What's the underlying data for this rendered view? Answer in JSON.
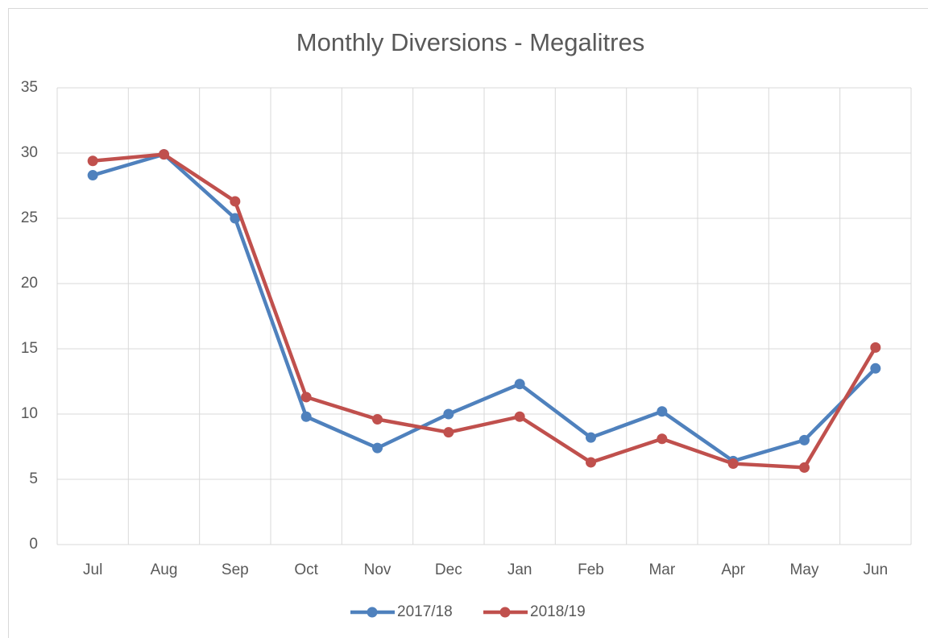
{
  "chart_data": {
    "type": "line",
    "title": "Monthly Diversions - Megalitres",
    "categories": [
      "Jul",
      "Aug",
      "Sep",
      "Oct",
      "Nov",
      "Dec",
      "Jan",
      "Feb",
      "Mar",
      "Apr",
      "May",
      "Jun"
    ],
    "series": [
      {
        "name": "2017/18",
        "color": "#4f81bd",
        "values": [
          28.3,
          29.9,
          25.0,
          9.8,
          7.4,
          10.0,
          12.3,
          8.2,
          10.2,
          6.4,
          8.0,
          13.5
        ]
      },
      {
        "name": "2018/19",
        "color": "#c0504d",
        "values": [
          29.4,
          29.9,
          26.3,
          11.3,
          9.6,
          8.6,
          9.8,
          6.3,
          8.1,
          6.2,
          5.9,
          15.1
        ]
      }
    ],
    "ylim": [
      0,
      35
    ],
    "yticks": [
      0,
      5,
      10,
      15,
      20,
      25,
      30,
      35
    ],
    "grid": true,
    "legend": "bottom"
  }
}
